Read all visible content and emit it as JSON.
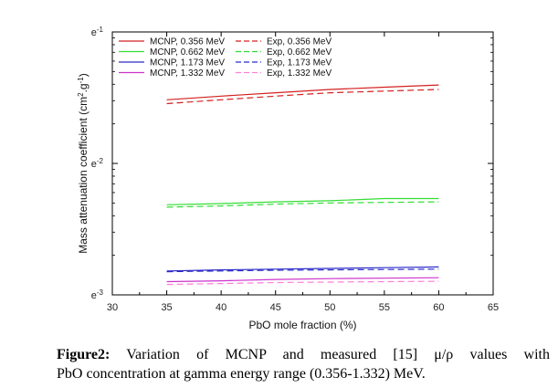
{
  "chart_data": {
    "type": "line",
    "xlabel": "PbO mole fraction (%)",
    "ylabel_parts": {
      "base": "Mass attenuation coefficient (cm",
      "sup1": "2",
      "mid": ".g",
      "sup2": "-1",
      "end": ")"
    },
    "x_ticks": [
      "30",
      "35",
      "40",
      "45",
      "50",
      "55",
      "60",
      "65"
    ],
    "y_ticks": [
      {
        "base": "e",
        "exp": "-3"
      },
      {
        "base": "e",
        "exp": "-2"
      },
      {
        "base": "e",
        "exp": "-1"
      }
    ],
    "xlim": [
      30,
      65
    ],
    "ylim_log10": [
      -3,
      -1
    ],
    "y_scale": "log",
    "grid": false,
    "legend_placement": "top-left",
    "x": [
      35,
      40,
      45,
      50,
      55,
      60
    ],
    "series": [
      {
        "name": "MCNP, 0.356 MeV",
        "color": "#d42020",
        "dash": false,
        "values": [
          0.0305,
          0.0325,
          0.0345,
          0.0365,
          0.038,
          0.0395
        ]
      },
      {
        "name": "Exp, 0.356 MeV",
        "color": "#d42020",
        "dash": true,
        "values": [
          0.0285,
          0.0305,
          0.0325,
          0.0345,
          0.0355,
          0.0365
        ]
      },
      {
        "name": "MCNP, 0.662 MeV",
        "color": "#33dd33",
        "dash": false,
        "values": [
          0.00485,
          0.00495,
          0.0051,
          0.0052,
          0.0054,
          0.0054
        ]
      },
      {
        "name": "Exp, 0.662 MeV",
        "color": "#33dd33",
        "dash": true,
        "values": [
          0.00465,
          0.00475,
          0.0049,
          0.005,
          0.00505,
          0.0051
        ]
      },
      {
        "name": "MCNP, 1.173 MeV",
        "color": "#2b2bc8",
        "dash": false,
        "values": [
          0.00152,
          0.00155,
          0.00157,
          0.00159,
          0.00161,
          0.00163
        ]
      },
      {
        "name": "Exp, 1.173 MeV",
        "color": "#2b2bc8",
        "dash": true,
        "values": [
          0.0015,
          0.00152,
          0.00154,
          0.00155,
          0.00156,
          0.00157
        ]
      },
      {
        "name": "MCNP, 1.332 MeV",
        "color": "#cc33cc",
        "dash": false,
        "values": [
          0.00126,
          0.00128,
          0.00131,
          0.00133,
          0.00134,
          0.00135
        ]
      },
      {
        "name": "Exp, 1.332 MeV",
        "color": "#ff7fd8",
        "dash": true,
        "values": [
          0.0012,
          0.00122,
          0.00124,
          0.00125,
          0.00126,
          0.00127
        ]
      }
    ]
  },
  "caption": {
    "label": "Figure2:",
    "text1": " Variation of MCNP and measured [15] μ/ρ values with",
    "text2": "PbO concentration at gamma energy range (0.356-1.332) MeV."
  }
}
